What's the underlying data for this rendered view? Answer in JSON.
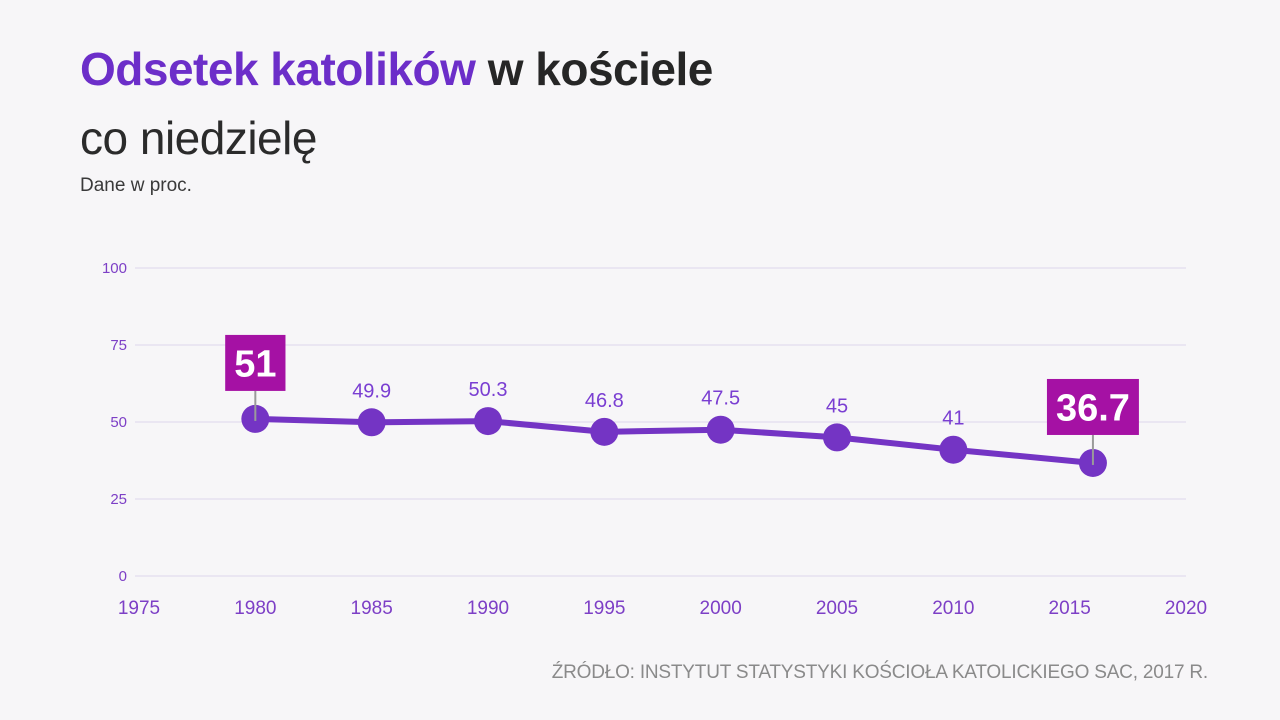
{
  "page": {
    "background": "#f7f6f8"
  },
  "header": {
    "title_highlight": "Odsetek katolików",
    "title_rest": " w kościele",
    "title_line2": "co niedzielę",
    "subtitle": "Dane w proc."
  },
  "source": {
    "label": "ŹRÓDŁO: INSTYTUT STATYSTYKI KOŚCIOŁA KATOLICKIEGO SAC, 2017 R."
  },
  "chart_data": {
    "type": "line",
    "title": "Odsetek katolików w kościele co niedzielę",
    "subtitle": "Dane w proc.",
    "x": [
      1980,
      1985,
      1990,
      1995,
      2000,
      2005,
      2010,
      2016
    ],
    "values": [
      51,
      49.9,
      50.3,
      46.8,
      47.5,
      45,
      41,
      36.7
    ],
    "point_labels": [
      "51",
      "49.9",
      "50.3",
      "46.8",
      "47.5",
      "45",
      "41",
      "36.7"
    ],
    "highlight_indices": [
      0,
      7
    ],
    "x_ticks": [
      "1975",
      "1980",
      "1985",
      "1990",
      "1995",
      "2000",
      "2005",
      "2010",
      "2015",
      "2020"
    ],
    "x_tick_values": [
      1975,
      1980,
      1985,
      1990,
      1995,
      2000,
      2005,
      2010,
      2015,
      2020
    ],
    "y_ticks": [
      "0",
      "25",
      "50",
      "75",
      "100"
    ],
    "y_tick_values": [
      0,
      25,
      50,
      75,
      100
    ],
    "xlim": [
      1975,
      2020
    ],
    "ylim": [
      0,
      100
    ],
    "grid": true,
    "legend": "none",
    "colors": {
      "line": "#7434c4",
      "point": "#7434c4",
      "value_label": "#7a3ed2",
      "axis_label": "#7d3fc6",
      "gridline": "#ded7ec",
      "highlight_box": "#a511a4",
      "highlight_text": "#ffffff",
      "connector": "#9a9a9a"
    }
  }
}
